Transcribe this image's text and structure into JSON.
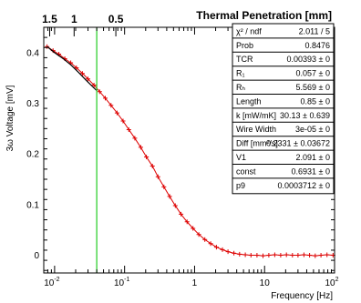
{
  "chart_data": {
    "type": "line",
    "title": "Thermal Penetration [mm]",
    "xlabel": "Frequency [Hz]",
    "ylabel": "3ω Voltage [mV]",
    "xscale": "log",
    "xlim": [
      0.007,
      100
    ],
    "ylim": [
      -0.035,
      0.45
    ],
    "grid": false,
    "top_axis": {
      "title": "Thermal Penetration [mm]",
      "ticks": [
        {
          "label": "1.5",
          "x": 0.0085
        },
        {
          "label": "1",
          "x": 0.019
        },
        {
          "label": "0.5",
          "x": 0.075
        }
      ]
    },
    "x_ticks": [
      {
        "label": "10",
        "sup": "-2",
        "x": 0.01
      },
      {
        "label": "10",
        "sup": "-1",
        "x": 0.1
      },
      {
        "label": "1",
        "sup": "",
        "x": 1
      },
      {
        "label": "10",
        "sup": "",
        "x": 10
      },
      {
        "label": "10",
        "sup": "2",
        "x": 100
      }
    ],
    "y_ticks": [
      {
        "label": "0",
        "y": 0.0
      },
      {
        "label": "0.1",
        "y": 0.1
      },
      {
        "label": "0.2",
        "y": 0.2
      },
      {
        "label": "0.3",
        "y": 0.3
      },
      {
        "label": "0.4",
        "y": 0.4
      }
    ],
    "vertical_line": {
      "x": 0.04,
      "color": "#22cc22"
    },
    "series": [
      {
        "color": "#dd0000",
        "x": [
          0.0078,
          0.0095,
          0.0115,
          0.014,
          0.017,
          0.0205,
          0.025,
          0.03,
          0.0365,
          0.044,
          0.053,
          0.064,
          0.078,
          0.095,
          0.115,
          0.14,
          0.17,
          0.205,
          0.25,
          0.3,
          0.365,
          0.44,
          0.53,
          0.64,
          0.78,
          0.95,
          1.15,
          1.4,
          1.7,
          2.05,
          2.5,
          3.0,
          3.65,
          4.4,
          5.3,
          6.4,
          7.8,
          9.5,
          11.5,
          14,
          17,
          20.5,
          25,
          30,
          36.5,
          44,
          53,
          64,
          78,
          95
        ],
        "y": [
          0.412,
          0.404,
          0.397,
          0.388,
          0.38,
          0.37,
          0.359,
          0.348,
          0.336,
          0.323,
          0.31,
          0.296,
          0.281,
          0.265,
          0.248,
          0.231,
          0.213,
          0.194,
          0.176,
          0.155,
          0.135,
          0.116,
          0.098,
          0.081,
          0.066,
          0.053,
          0.041,
          0.031,
          0.023,
          0.016,
          0.011,
          0.007,
          0.004,
          0.002,
          0.001,
          0.0,
          0.0,
          -0.001,
          0.0,
          0.001,
          0.0,
          0.001,
          0.0,
          0.0,
          0.001,
          0.0,
          -0.001,
          0.0,
          0.001,
          0.0
        ]
      },
      {
        "color": "#000000",
        "x": [
          0.0078,
          0.01,
          0.013,
          0.017,
          0.022,
          0.028,
          0.036,
          0.04
        ],
        "y": [
          0.412,
          0.4,
          0.389,
          0.376,
          0.361,
          0.346,
          0.331,
          0.325
        ]
      }
    ]
  },
  "stats_box": {
    "rows": [
      {
        "label": "χ² / ndf",
        "value": "2.011 / 5"
      },
      {
        "label": "Prob",
        "value": "0.8476"
      },
      {
        "label": "TCR",
        "value": "0.00393 ±    0"
      },
      {
        "label": "R₁",
        "value": "0.057 ±    0"
      },
      {
        "label": "Rₕ",
        "value": "5.569 ±    0"
      },
      {
        "label": "Length",
        "value": "0.85 ±    0"
      },
      {
        "label": "k [mW/mK]",
        "value": "30.13 ± 0.639"
      },
      {
        "label": "Wire Width",
        "value": "3e-05 ±    0"
      },
      {
        "label": "Diff [mm²/s]",
        "value": "0.2331 ± 0.03672"
      },
      {
        "label": "V1",
        "value": "2.091 ±    0"
      },
      {
        "label": "const",
        "value": "0.6931 ±    0"
      },
      {
        "label": "p9",
        "value": "0.0003712 ±    0"
      }
    ]
  }
}
